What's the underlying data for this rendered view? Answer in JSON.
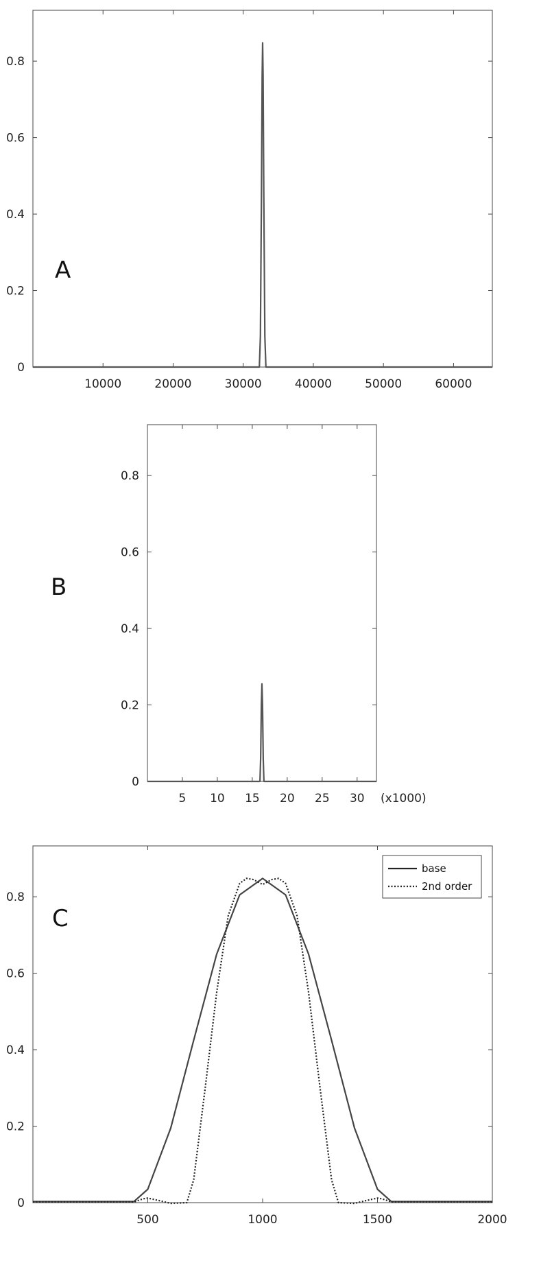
{
  "chart_data": [
    {
      "panel_label": "A",
      "type": "line",
      "xlim": [
        0,
        65536
      ],
      "ylim": [
        0,
        0.933
      ],
      "x_ticks": [
        10000,
        20000,
        30000,
        40000,
        50000,
        60000
      ],
      "x_tick_labels": [
        "10000",
        "20000",
        "30000",
        "40000",
        "50000",
        "60000"
      ],
      "y_ticks": [
        0,
        0.2,
        0.4,
        0.6,
        0.8
      ],
      "y_tick_labels": [
        "0",
        "0.2",
        "0.4",
        "0.6",
        "0.8"
      ],
      "x_axis_note": "",
      "series": [
        {
          "color": "#555555",
          "style": "solid",
          "x": [
            0,
            32300,
            32450,
            32600,
            32700,
            32768,
            32836,
            32936,
            33086,
            33236,
            65536
          ],
          "y": [
            0,
            0,
            0.08,
            0.45,
            0.76,
            0.848,
            0.76,
            0.45,
            0.08,
            0,
            0
          ]
        }
      ],
      "legend": []
    },
    {
      "panel_label": "B",
      "type": "line",
      "xlim": [
        0,
        32768
      ],
      "ylim": [
        0,
        0.933
      ],
      "x_ticks": [
        5000,
        10000,
        15000,
        20000,
        25000,
        30000
      ],
      "x_tick_labels": [
        "5",
        "10",
        "15",
        "20",
        "25",
        "30"
      ],
      "y_ticks": [
        0,
        0.2,
        0.4,
        0.6,
        0.8
      ],
      "y_tick_labels": [
        "0",
        "0.2",
        "0.4",
        "0.6",
        "0.8"
      ],
      "x_axis_note": "(x1000)",
      "series": [
        {
          "color": "#555555",
          "style": "solid",
          "x": [
            0,
            16100,
            16200,
            16300,
            16384,
            16468,
            16568,
            16668,
            32768
          ],
          "y": [
            0,
            0,
            0.06,
            0.2,
            0.255,
            0.2,
            0.06,
            0,
            0
          ]
        }
      ],
      "legend": []
    },
    {
      "panel_label": "C",
      "type": "line",
      "xlim": [
        0,
        2000
      ],
      "ylim": [
        0,
        0.933
      ],
      "x_ticks": [
        500,
        1000,
        1500,
        2000
      ],
      "x_tick_labels": [
        "500",
        "1000",
        "1500",
        "2000"
      ],
      "y_ticks": [
        0,
        0.2,
        0.4,
        0.6,
        0.8
      ],
      "y_tick_labels": [
        "0",
        "0.2",
        "0.4",
        "0.6",
        "0.8"
      ],
      "x_axis_note": "",
      "series": [
        {
          "name": "base",
          "color": "#444444",
          "style": "solid",
          "x": [
            0,
            200,
            440,
            500,
            600,
            700,
            800,
            900,
            1000,
            1100,
            1200,
            1300,
            1400,
            1500,
            1560,
            1800,
            2000
          ],
          "y": [
            0.003,
            0.003,
            0.003,
            0.035,
            0.195,
            0.425,
            0.65,
            0.805,
            0.848,
            0.805,
            0.65,
            0.425,
            0.195,
            0.035,
            0.003,
            0.003,
            0.003
          ]
        },
        {
          "name": "2nd order",
          "color": "#222222",
          "style": "dotted",
          "x": [
            0,
            440,
            480,
            500,
            560,
            600,
            670,
            700,
            750,
            800,
            850,
            900,
            930,
            960,
            1000,
            1040,
            1070,
            1100,
            1150,
            1200,
            1250,
            1300,
            1330,
            1400,
            1440,
            1500,
            1520,
            1560,
            2000
          ],
          "y": [
            0.002,
            0.002,
            0.01,
            0.012,
            0.004,
            -0.002,
            0.0,
            0.06,
            0.3,
            0.55,
            0.75,
            0.835,
            0.848,
            0.845,
            0.832,
            0.845,
            0.848,
            0.835,
            0.75,
            0.55,
            0.3,
            0.06,
            0.0,
            -0.002,
            0.004,
            0.012,
            0.01,
            0.002,
            0.002
          ]
        }
      ],
      "legend": [
        {
          "label": "base",
          "style": "solid"
        },
        {
          "label": "2nd order",
          "style": "dotted"
        }
      ],
      "legend_position": "top-right"
    }
  ]
}
